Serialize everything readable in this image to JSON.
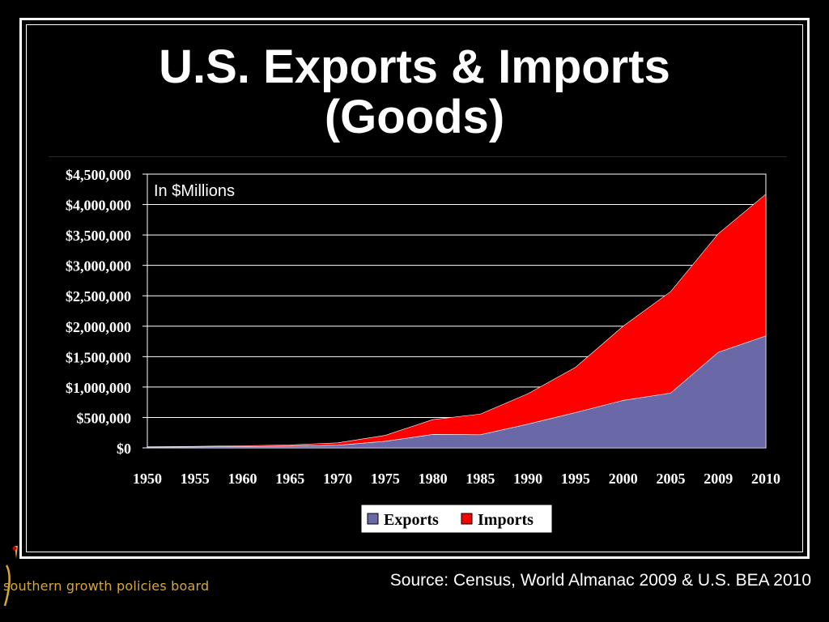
{
  "title_line1": "U.S. Exports & Imports",
  "title_line2": "(Goods)",
  "source": "Source: Census, World Almanac 2009 & U.S. BEA 2010",
  "logo_text": "southern growth policies board",
  "colors": {
    "exports": "#6b68a8",
    "imports": "#ff0000",
    "plot_bg": "#000000",
    "grid": "#ffffff",
    "logo": "#d4a73a"
  },
  "chart_data": {
    "type": "area",
    "stacked": true,
    "annotation": "In $Millions",
    "categories": [
      "1950",
      "1955",
      "1960",
      "1965",
      "1970",
      "1975",
      "1980",
      "1985",
      "1990",
      "1995",
      "2000",
      "2005",
      "2009",
      "2010"
    ],
    "series": [
      {
        "name": "Exports",
        "values": [
          10000,
          14000,
          20000,
          27000,
          43000,
          107000,
          220000,
          216000,
          390000,
          580000,
          780000,
          900000,
          1570000,
          1840000
        ]
      },
      {
        "name": "Imports",
        "values": [
          9000,
          11000,
          15000,
          21000,
          40000,
          99000,
          245000,
          340000,
          500000,
          745000,
          1220000,
          1670000,
          1950000,
          2330000
        ]
      }
    ],
    "yticks": [
      "$0",
      "$500,000",
      "$1,000,000",
      "$1,500,000",
      "$2,000,000",
      "$2,500,000",
      "$3,000,000",
      "$3,500,000",
      "$4,000,000",
      "$4,500,000"
    ],
    "ylim": [
      0,
      4500000
    ],
    "grid": true,
    "legend_position": "bottom"
  }
}
